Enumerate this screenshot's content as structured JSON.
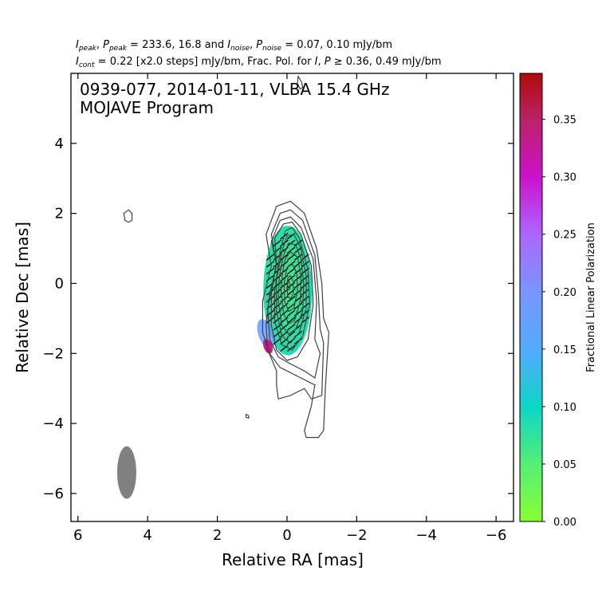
{
  "header": {
    "line1": {
      "i_label": "I",
      "i_sub": "peak",
      "p_label": "P",
      "p_sub": "peak",
      "values_text": " = 233.6, 16.8 and ",
      "in_label": "I",
      "in_sub": "noise",
      "pn_label": "P",
      "pn_sub": "noise",
      "noise_text": " = 0.07, 0.10 mJy/bm"
    },
    "line2": {
      "ic_label": "I",
      "ic_sub": "cont",
      "cont_text": " = 0.22 [x2.0 steps] mJy/bm, Frac. Pol. for ",
      "i2_label": "I",
      "p2_label": "P",
      "frac_text": " ≥ 0.36, 0.49 mJy/bm"
    }
  },
  "chart_data": {
    "type": "contour",
    "title_line1": "0939-077, 2014-01-11, VLBA 15.4 GHz",
    "title_line2": "MOJAVE Program",
    "xlabel": "Relative RA [mas]",
    "ylabel": "Relative Dec [mas]",
    "xlim": [
      6.2,
      -6.5
    ],
    "ylim": [
      -6.8,
      6.0
    ],
    "xticks": [
      6,
      4,
      2,
      0,
      -2,
      -4,
      -6
    ],
    "xtick_labels": [
      "6",
      "4",
      "2",
      "0",
      "−2",
      "−4",
      "−6"
    ],
    "yticks": [
      4,
      2,
      0,
      -2,
      -4,
      -6
    ],
    "ytick_labels": [
      "4",
      "2",
      "0",
      "−2",
      "−4",
      "−6"
    ],
    "contour_color": "#404040",
    "beam": {
      "ra": 4.6,
      "dec": -5.4,
      "major_mas": 1.5,
      "minor_mas": 0.55,
      "color": "#808080"
    },
    "contours": [
      [
        [
          0.45,
          0.5
        ],
        [
          0.6,
          1.4
        ],
        [
          0.3,
          2.2
        ],
        [
          -0.1,
          2.35
        ],
        [
          -0.5,
          2.0
        ],
        [
          -0.85,
          1.0
        ],
        [
          -1.0,
          0.0
        ],
        [
          -1.05,
          -1.0
        ],
        [
          -1.2,
          -1.4
        ],
        [
          -1.1,
          -3.0
        ],
        [
          -1.05,
          -4.2
        ],
        [
          -0.9,
          -4.4
        ],
        [
          -0.55,
          -4.4
        ],
        [
          -0.5,
          -4.2
        ],
        [
          -0.7,
          -3.5
        ],
        [
          -0.8,
          -2.9
        ],
        [
          -0.4,
          -2.7
        ],
        [
          0.2,
          -2.4
        ],
        [
          0.5,
          -2.0
        ],
        [
          0.7,
          -1.4
        ],
        [
          0.7,
          -0.5
        ],
        [
          0.45,
          0.5
        ]
      ],
      [
        [
          0.3,
          0.5
        ],
        [
          0.45,
          1.4
        ],
        [
          0.2,
          2.0
        ],
        [
          -0.1,
          2.1
        ],
        [
          -0.45,
          1.8
        ],
        [
          -0.8,
          0.8
        ],
        [
          -0.9,
          -0.3
        ],
        [
          -0.95,
          -1.3
        ],
        [
          -1.05,
          -1.7
        ],
        [
          -1.0,
          -3.2
        ],
        [
          -0.7,
          -3.3
        ],
        [
          -0.5,
          -3.0
        ],
        [
          -0.1,
          -3.2
        ],
        [
          0.25,
          -3.3
        ],
        [
          0.3,
          -2.9
        ],
        [
          0.3,
          -2.5
        ],
        [
          0.55,
          -1.9
        ],
        [
          0.6,
          -1.2
        ],
        [
          0.5,
          -0.3
        ],
        [
          0.3,
          0.5
        ]
      ],
      [
        [
          0.3,
          0.6
        ],
        [
          0.45,
          1.2
        ],
        [
          0.2,
          1.8
        ],
        [
          -0.1,
          1.9
        ],
        [
          -0.4,
          1.6
        ],
        [
          -0.75,
          0.7
        ],
        [
          -0.85,
          -0.5
        ],
        [
          -0.8,
          -1.6
        ],
        [
          -0.95,
          -2.0
        ],
        [
          -0.8,
          -2.7
        ],
        [
          -0.5,
          -2.5
        ],
        [
          -0.1,
          -2.3
        ],
        [
          0.25,
          -2.1
        ],
        [
          0.5,
          -1.6
        ],
        [
          0.55,
          -0.7
        ],
        [
          0.3,
          0.6
        ]
      ],
      [
        [
          0.3,
          0.6
        ],
        [
          0.35,
          1.3
        ],
        [
          0.1,
          1.7
        ],
        [
          -0.15,
          1.75
        ],
        [
          -0.4,
          1.4
        ],
        [
          -0.7,
          0.5
        ],
        [
          -0.75,
          -0.6
        ],
        [
          -0.6,
          -1.6
        ],
        [
          -0.3,
          -2.1
        ],
        [
          0.0,
          -2.2
        ],
        [
          0.3,
          -1.9
        ],
        [
          0.45,
          -1.2
        ],
        [
          0.45,
          -0.3
        ],
        [
          0.3,
          0.6
        ]
      ],
      [
        [
          0.2,
          0.9
        ],
        [
          0.05,
          1.5
        ],
        [
          -0.15,
          1.6
        ],
        [
          -0.35,
          1.3
        ],
        [
          -0.6,
          0.4
        ],
        [
          -0.65,
          -0.6
        ],
        [
          -0.45,
          -1.5
        ],
        [
          -0.15,
          -1.9
        ],
        [
          0.15,
          -1.75
        ],
        [
          0.35,
          -1.1
        ],
        [
          0.35,
          -0.2
        ],
        [
          0.2,
          0.9
        ]
      ],
      [
        [
          0.15,
          0.9
        ],
        [
          0.0,
          1.35
        ],
        [
          -0.2,
          1.4
        ],
        [
          -0.4,
          1.0
        ],
        [
          -0.55,
          0.2
        ],
        [
          -0.55,
          -0.7
        ],
        [
          -0.35,
          -1.4
        ],
        [
          -0.1,
          -1.7
        ],
        [
          0.15,
          -1.5
        ],
        [
          0.3,
          -0.8
        ],
        [
          0.3,
          0.1
        ],
        [
          0.15,
          0.9
        ]
      ],
      [
        [
          0.1,
          0.8
        ],
        [
          -0.05,
          1.15
        ],
        [
          -0.25,
          1.1
        ],
        [
          -0.4,
          0.7
        ],
        [
          -0.48,
          0.0
        ],
        [
          -0.45,
          -0.8
        ],
        [
          -0.25,
          -1.3
        ],
        [
          -0.05,
          -1.45
        ],
        [
          0.15,
          -1.2
        ],
        [
          0.25,
          -0.5
        ],
        [
          0.22,
          0.2
        ],
        [
          0.1,
          0.8
        ]
      ],
      [
        [
          0.05,
          0.7
        ],
        [
          -0.1,
          0.9
        ],
        [
          -0.3,
          0.75
        ],
        [
          -0.4,
          0.2
        ],
        [
          -0.38,
          -0.5
        ],
        [
          -0.22,
          -1.05
        ],
        [
          -0.05,
          -1.15
        ],
        [
          0.1,
          -0.85
        ],
        [
          0.17,
          -0.2
        ],
        [
          0.12,
          0.35
        ],
        [
          0.05,
          0.7
        ]
      ],
      [
        [
          0.0,
          0.45
        ],
        [
          -0.15,
          0.55
        ],
        [
          -0.28,
          0.3
        ],
        [
          -0.3,
          -0.2
        ],
        [
          -0.2,
          -0.7
        ],
        [
          -0.05,
          -0.8
        ],
        [
          0.07,
          -0.5
        ],
        [
          0.08,
          0.0
        ],
        [
          0.0,
          0.45
        ]
      ],
      [
        [
          -0.02,
          0.15
        ],
        [
          -0.1,
          0.22
        ],
        [
          -0.18,
          0.05
        ],
        [
          -0.18,
          -0.3
        ],
        [
          -0.1,
          -0.45
        ],
        [
          -0.02,
          -0.35
        ],
        [
          0.0,
          -0.1
        ],
        [
          -0.02,
          0.15
        ]
      ],
      [
        [
          -0.02,
          0.02
        ],
        [
          -0.06,
          0.06
        ],
        [
          -0.09,
          -0.05
        ],
        [
          -0.08,
          -0.17
        ],
        [
          -0.03,
          -0.18
        ],
        [
          -0.02,
          -0.08
        ],
        [
          -0.02,
          0.02
        ]
      ],
      [
        [
          4.55,
          2.1
        ],
        [
          4.45,
          2.0
        ],
        [
          4.45,
          1.8
        ],
        [
          4.55,
          1.75
        ],
        [
          4.65,
          1.8
        ],
        [
          4.68,
          2.0
        ],
        [
          4.55,
          2.1
        ]
      ],
      [
        [
          -0.32,
          5.92
        ],
        [
          -0.42,
          5.75
        ],
        [
          -0.45,
          5.6
        ],
        [
          -0.38,
          5.55
        ],
        [
          -0.3,
          5.7
        ],
        [
          -0.32,
          5.92
        ]
      ],
      [
        [
          1.18,
          -3.74
        ],
        [
          1.1,
          -3.78
        ],
        [
          1.1,
          -3.85
        ],
        [
          1.18,
          -3.82
        ],
        [
          1.18,
          -3.74
        ]
      ]
    ],
    "polarization_region": {
      "center_ra": -0.02,
      "center_dec": -0.2,
      "semi_major_mas": 1.85,
      "semi_minor_mas": 0.7,
      "fracpol_core": 0.08,
      "fracpol_tail": 0.33,
      "tail_ra": 0.55,
      "tail_dec": -1.8
    },
    "evpa_sticks": {
      "angle_deg": 38,
      "length_mas": 0.28,
      "spacing_mas": 0.2,
      "color": "#000000"
    },
    "colorbar": {
      "label": "Fractional Linear Polarization",
      "vmin": 0.0,
      "vmax": 0.39,
      "ticks": [
        0.0,
        0.05,
        0.1,
        0.15,
        0.2,
        0.25,
        0.3,
        0.35
      ],
      "tick_labels": [
        "0.00",
        "0.05",
        "0.10",
        "0.15",
        "0.20",
        "0.25",
        "0.30",
        "0.35"
      ],
      "colormap": [
        [
          0.0,
          "#88ff33"
        ],
        [
          0.05,
          "#55ee77"
        ],
        [
          0.1,
          "#0cd6c6"
        ],
        [
          0.15,
          "#55a9ff"
        ],
        [
          0.2,
          "#7995ff"
        ],
        [
          0.25,
          "#ac66ff"
        ],
        [
          0.3,
          "#cc11cc"
        ],
        [
          0.35,
          "#bb2266"
        ],
        [
          0.39,
          "#b00a0a"
        ]
      ]
    }
  }
}
